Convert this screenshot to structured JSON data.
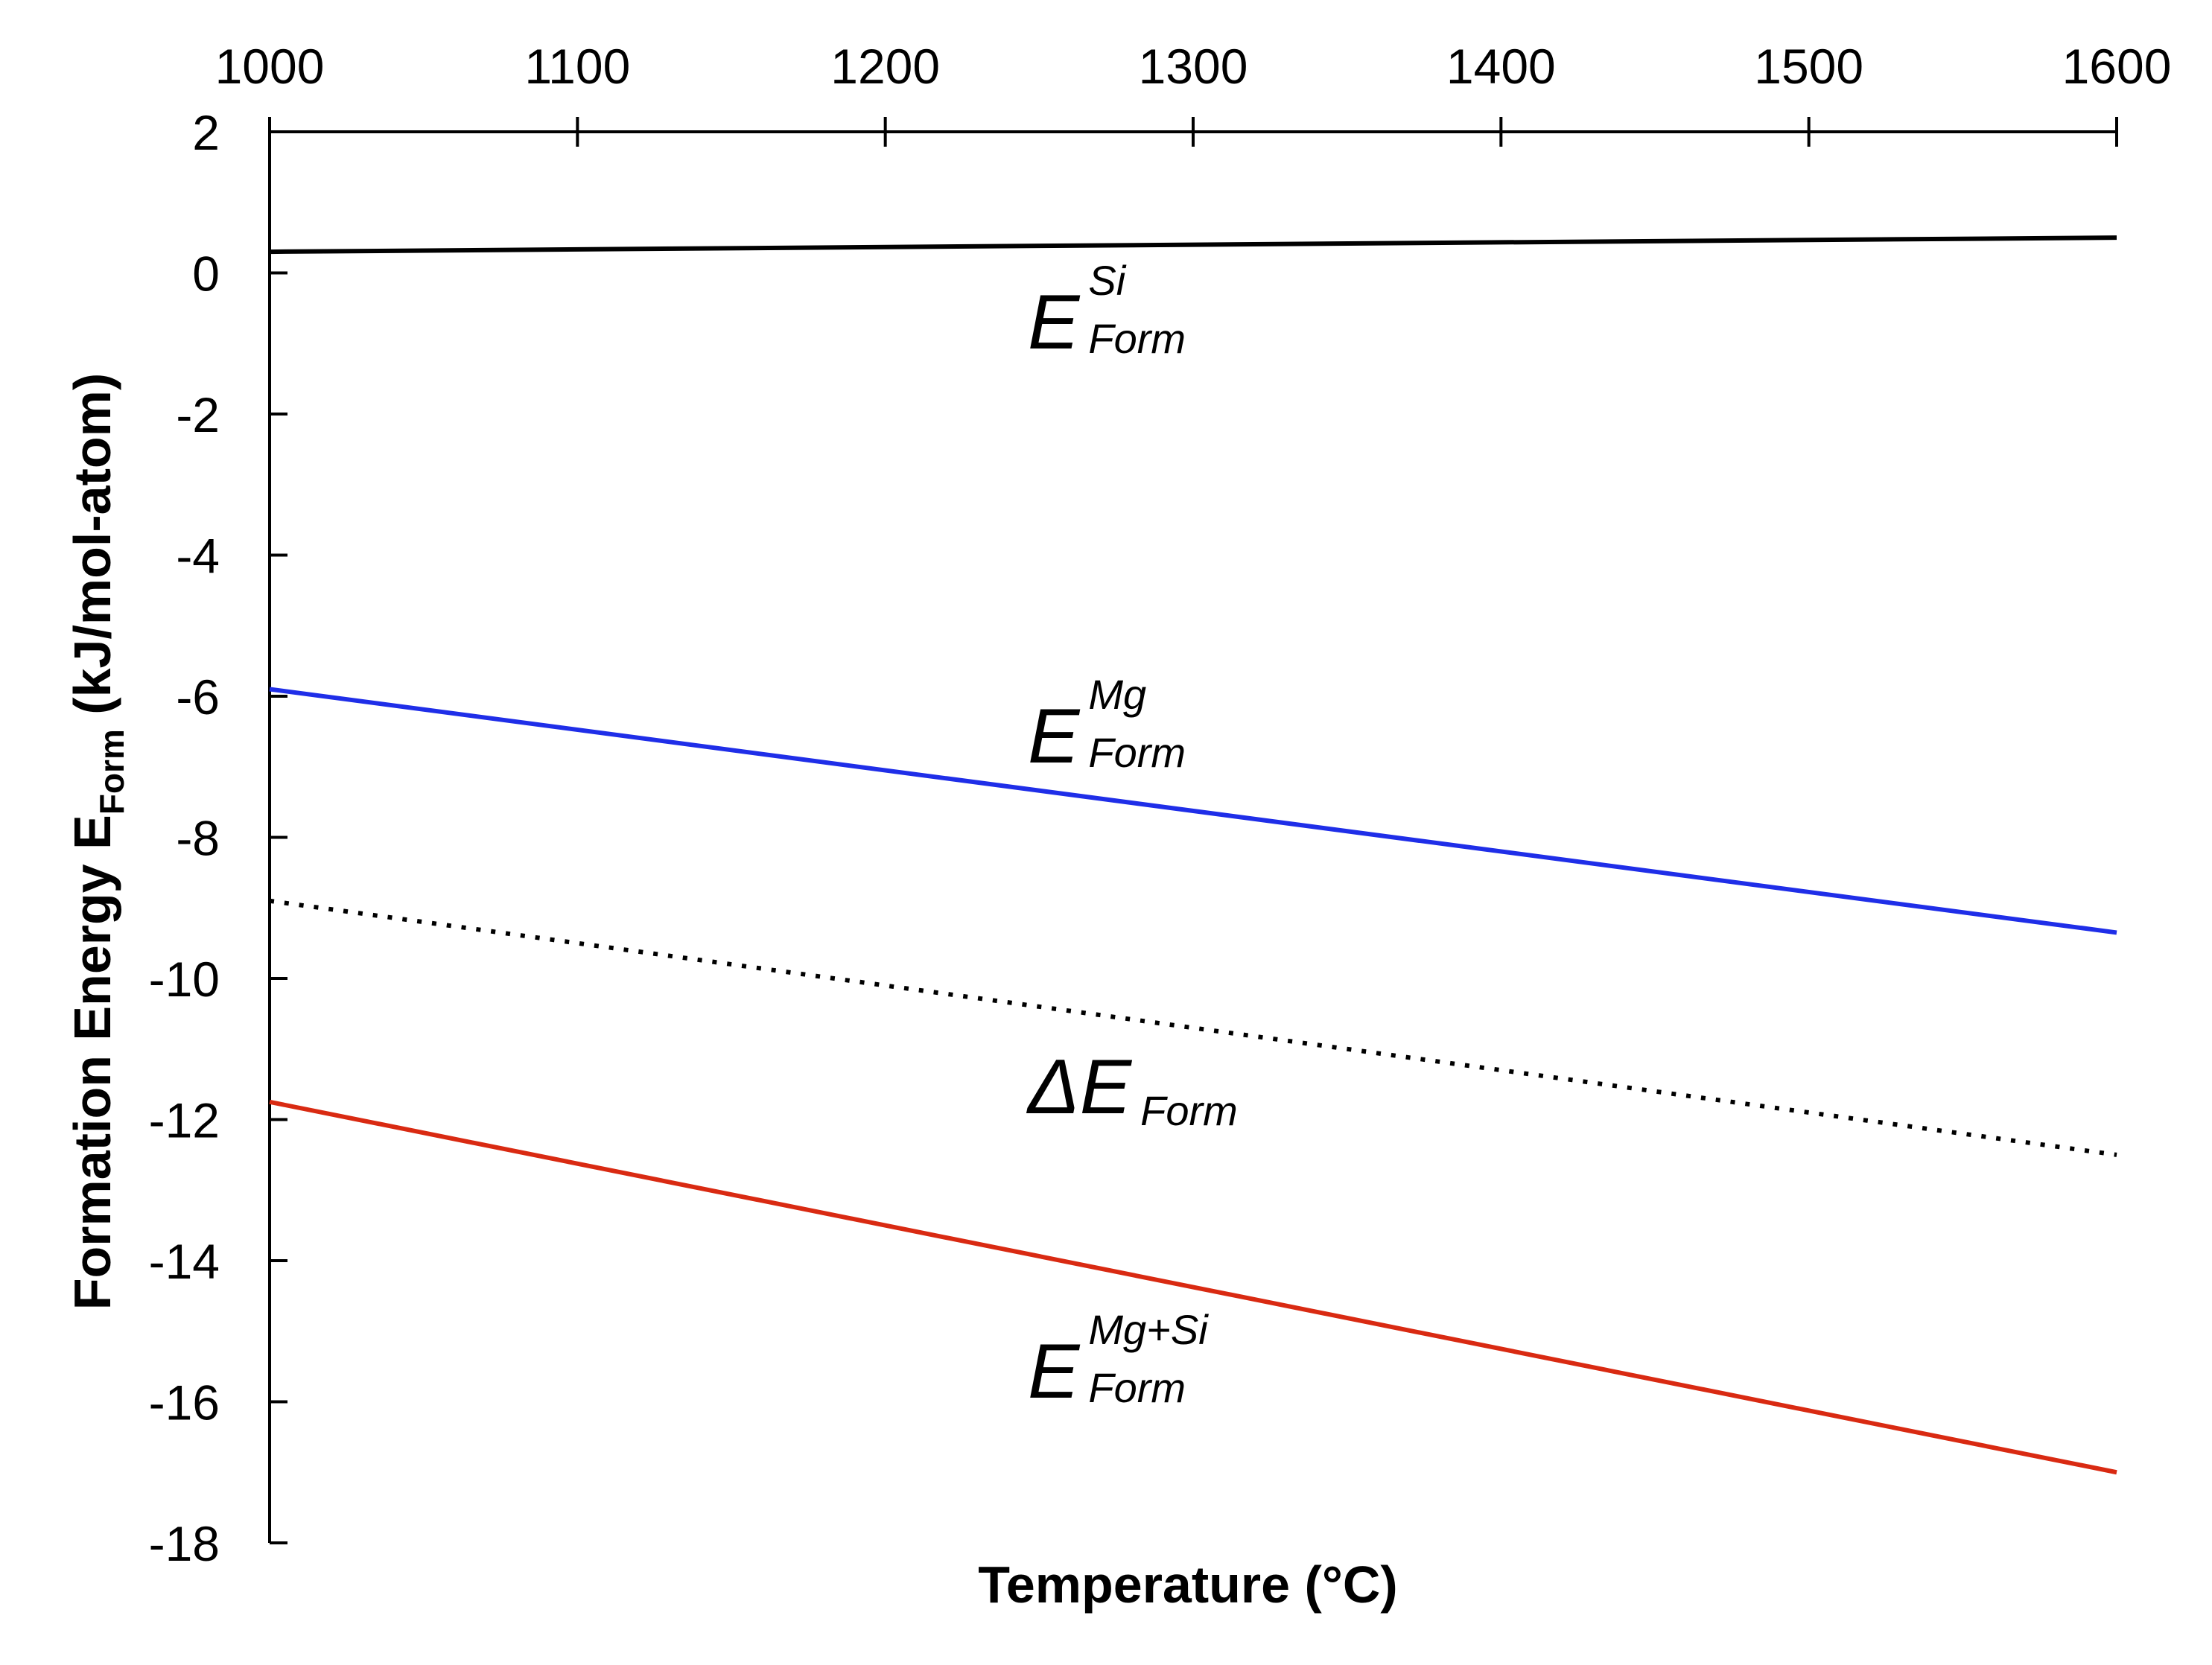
{
  "chart_data": {
    "type": "line",
    "title": "",
    "xlabel": "Temperature (°C)",
    "ylabel": {
      "main": "Formation Energy E",
      "sub": "Form",
      "units": " (kJ/mol-atom)"
    },
    "xlim": [
      1000,
      1600
    ],
    "ylim": [
      -18,
      2
    ],
    "x_ticks": [
      1000,
      1100,
      1200,
      1300,
      1400,
      1500,
      1600
    ],
    "y_ticks": [
      2,
      0,
      -2,
      -4,
      -6,
      -8,
      -10,
      -12,
      -14,
      -16,
      -18
    ],
    "x_axis_position": "top",
    "grid": false,
    "legend": "none (series labelled inline)",
    "series": [
      {
        "label": {
          "prefix": "",
          "main": "E",
          "sup": "Si",
          "sub": "Form"
        },
        "color": "#000000",
        "style": "solid",
        "x": [
          1000,
          1600
        ],
        "y": [
          0.3,
          0.5
        ]
      },
      {
        "label": {
          "prefix": "",
          "main": "E",
          "sup": "Mg",
          "sub": "Form"
        },
        "color": "#1f2ee8",
        "style": "solid",
        "x": [
          1000,
          1600
        ],
        "y": [
          -5.9,
          -9.35
        ]
      },
      {
        "label": {
          "prefix": "Δ",
          "main": "E",
          "sup": "",
          "sub": "Form"
        },
        "color": "#000000",
        "style": "dotted",
        "x": [
          1000,
          1600
        ],
        "y": [
          -8.9,
          -12.5
        ]
      },
      {
        "label": {
          "prefix": "",
          "main": "E",
          "sup": "Mg+Si",
          "sub": "Form"
        },
        "color": "#d92a12",
        "style": "solid",
        "x": [
          1000,
          1600
        ],
        "y": [
          -11.75,
          -17.0
        ]
      }
    ]
  }
}
